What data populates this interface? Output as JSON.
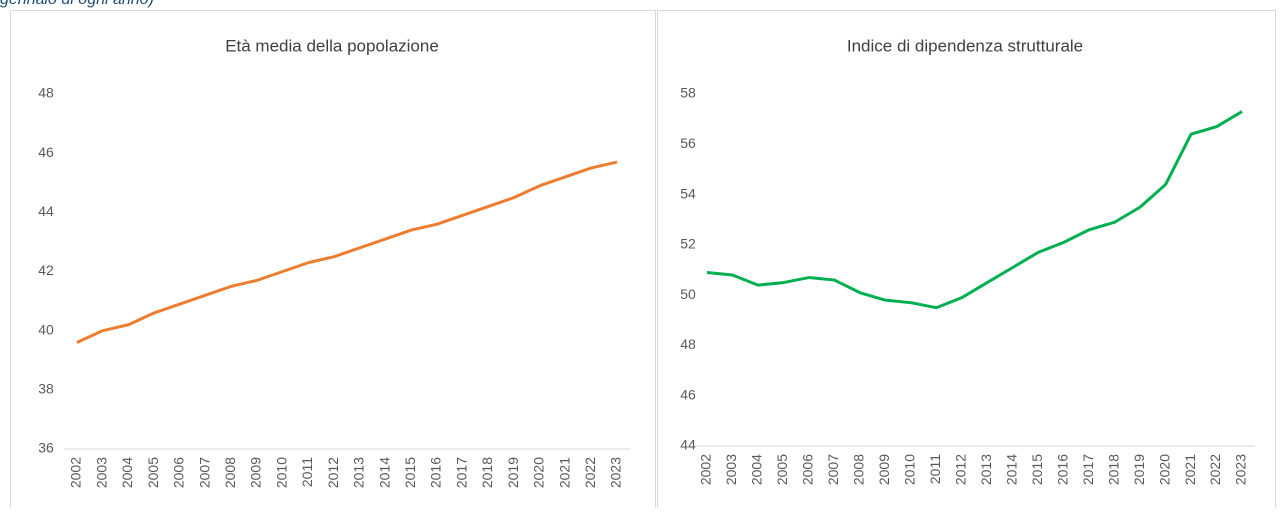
{
  "caption": "gennaio di ogni anno)",
  "chart_data": [
    {
      "type": "line",
      "title": "Età media della popolazione",
      "categories": [
        "2002",
        "2003",
        "2004",
        "2005",
        "2006",
        "2007",
        "2008",
        "2009",
        "2010",
        "2011",
        "2012",
        "2013",
        "2014",
        "2015",
        "2016",
        "2017",
        "2018",
        "2019",
        "2020",
        "2021",
        "2022",
        "2023"
      ],
      "series": [
        {
          "name": "Età media della popolazione",
          "color": "#ed7d31",
          "values": [
            39.6,
            40.0,
            40.2,
            40.6,
            40.9,
            41.2,
            41.5,
            41.7,
            42.0,
            42.3,
            42.5,
            42.8,
            43.1,
            43.4,
            43.6,
            43.9,
            44.2,
            44.5,
            44.9,
            45.2,
            45.5,
            45.7
          ]
        }
      ],
      "ylim": [
        36,
        48
      ],
      "yticks": [
        36,
        38,
        40,
        42,
        44,
        46,
        48
      ],
      "grid": false
    },
    {
      "type": "line",
      "title": "Indice di dipendenza strutturale",
      "categories": [
        "2002",
        "2003",
        "2004",
        "2005",
        "2006",
        "2007",
        "2008",
        "2009",
        "2010",
        "2011",
        "2012",
        "2013",
        "2014",
        "2015",
        "2016",
        "2017",
        "2018",
        "2019",
        "2020",
        "2021",
        "2022",
        "2023"
      ],
      "series": [
        {
          "name": "Indice di dipendenza strutturale",
          "color": "#00b050",
          "values": [
            50.9,
            50.8,
            50.4,
            50.5,
            50.7,
            50.6,
            50.1,
            49.8,
            49.7,
            49.5,
            49.9,
            50.5,
            51.1,
            51.7,
            52.1,
            52.6,
            52.9,
            53.5,
            54.4,
            56.4,
            56.7,
            57.3
          ]
        }
      ],
      "ylim": [
        44,
        58
      ],
      "yticks": [
        44,
        46,
        48,
        50,
        52,
        54,
        56,
        58
      ],
      "grid": false
    }
  ]
}
